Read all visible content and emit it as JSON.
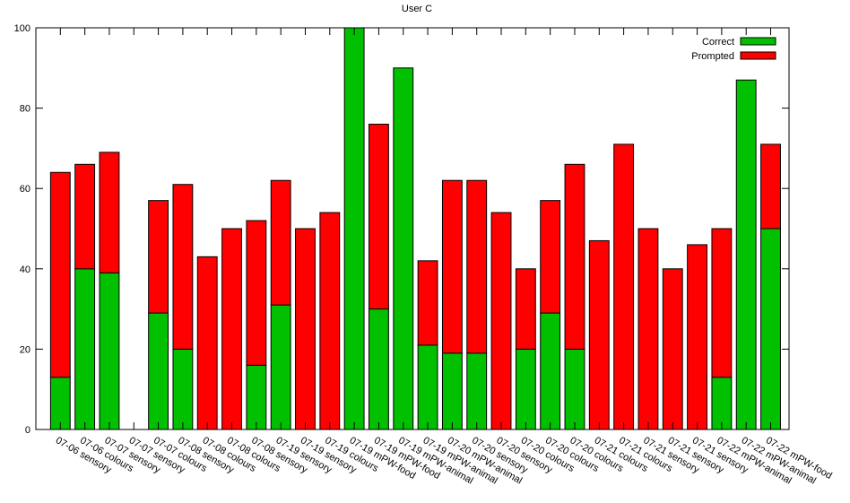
{
  "chart_data": {
    "type": "bar",
    "stacked": true,
    "title": "User C",
    "xlabel": "",
    "ylabel": "",
    "ylim": [
      0,
      100
    ],
    "yticks": [
      0,
      20,
      40,
      60,
      80,
      100
    ],
    "grid": false,
    "legend_position": "top-right",
    "categories": [
      "07-06 sensory",
      "07-06 colours",
      "07-07 sensory",
      "07-07 sensory",
      "07-07 colours",
      "07-08 sensory",
      "07-08 colours",
      "07-08 colours",
      "07-08 sensory",
      "07-19 sensory",
      "07-19 sensory",
      "07-19 colours",
      "07-19 mPW-food",
      "07-19 mPW-food",
      "07-19 mPW-animal",
      "07-19 mPW-animal",
      "07-20 mPW-animal",
      "07-20 sensory",
      "07-20 sensory",
      "07-20 colours",
      "07-20 colours",
      "07-20 colours",
      "07-21 colours",
      "07-21 colours",
      "07-21 sensory",
      "07-21 sensory",
      "07-21 sensory",
      "07-22 mPW-animal",
      "07-22 mPW-animal",
      "07-22 mPW-food"
    ],
    "series": [
      {
        "name": "Correct",
        "color": "#00c000",
        "values": [
          13,
          40,
          39,
          0,
          29,
          20,
          0,
          0,
          16,
          31,
          0,
          0,
          100,
          30,
          90,
          21,
          19,
          19,
          0,
          20,
          29,
          20,
          0,
          0,
          0,
          0,
          0,
          13,
          87,
          50
        ]
      },
      {
        "name": "Prompted",
        "color": "#ff0000",
        "values": [
          51,
          26,
          30,
          0,
          28,
          41,
          43,
          50,
          36,
          31,
          50,
          54,
          0,
          46,
          0,
          21,
          43,
          43,
          54,
          20,
          28,
          46,
          47,
          71,
          50,
          40,
          46,
          37,
          0,
          21
        ]
      }
    ]
  }
}
